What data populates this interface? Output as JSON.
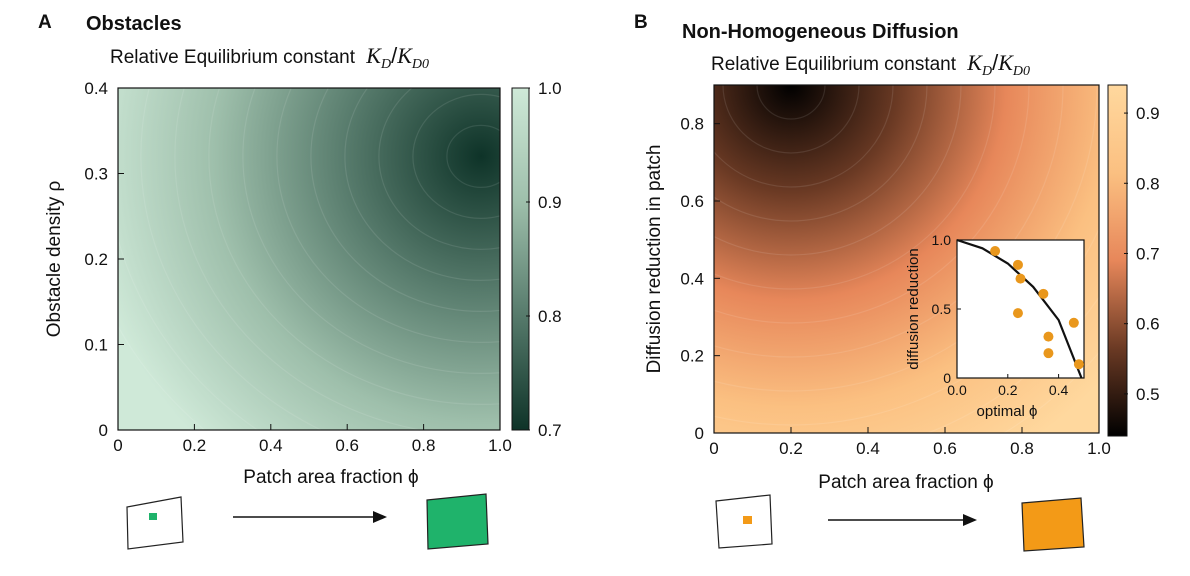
{
  "panels": {
    "a": {
      "letter": "A",
      "title": "Obstacles"
    },
    "b": {
      "letter": "B",
      "title": "Non-Homogeneous Diffusion"
    }
  },
  "subtitle_prefix": "Relative Equilibrium constant",
  "kd_symbol": "K",
  "kd_sub": "D",
  "kd0_sub": "D0",
  "kd_slash": "/",
  "colors": {
    "green_patch": "#1fb36b",
    "orange_patch": "#f39a17",
    "inset_points": "#e9971c"
  },
  "chart_data": [
    {
      "type": "heatmap",
      "xlabel": "Patch area fraction ϕ",
      "ylabel": "Obstacle density ρ",
      "xlim": [
        0,
        1.0
      ],
      "ylim": [
        0,
        0.4
      ],
      "x_ticks": [
        "0",
        "0.2",
        "0.4",
        "0.6",
        "0.8",
        "1.0"
      ],
      "y_ticks": [
        "0",
        "0.1",
        "0.2",
        "0.3",
        "0.4"
      ],
      "colorbar": {
        "range": [
          0.7,
          1.0
        ],
        "ticks": [
          "0.7",
          "0.8",
          "0.9",
          "1.0"
        ]
      },
      "colormap": [
        "#0e3328",
        "#567a6b",
        "#9ebfab",
        "#cfe9d8"
      ],
      "min_location": [
        0.95,
        0.32
      ],
      "min_value": 0.7,
      "grid": false
    },
    {
      "type": "heatmap",
      "xlabel": "Patch area fraction ϕ",
      "ylabel": "Diffusion reduction in patch",
      "xlim": [
        0,
        1.0
      ],
      "ylim": [
        0,
        0.9
      ],
      "x_ticks": [
        "0",
        "0.2",
        "0.4",
        "0.6",
        "0.8",
        "1.0"
      ],
      "y_ticks": [
        "0",
        "0.2",
        "0.4",
        "0.6",
        "0.8"
      ],
      "colorbar": {
        "range": [
          0.44,
          0.94
        ],
        "ticks": [
          "0.5",
          "0.6",
          "0.7",
          "0.8",
          "0.9"
        ]
      },
      "colormap": [
        "#000000",
        "#6b3a24",
        "#e7875a",
        "#fbc081",
        "#ffd89e"
      ],
      "min_location": [
        0.2,
        0.9
      ],
      "min_value": 0.44,
      "grid": false
    },
    {
      "type": "scatter",
      "xlabel": "optimal ϕ",
      "ylabel": "diffusion reduction",
      "xlim": [
        0,
        0.5
      ],
      "ylim": [
        0,
        1.0
      ],
      "x_ticks": [
        "0.0",
        "0.2",
        "0.4"
      ],
      "y_ticks": [
        "0",
        "0.5",
        "1.0"
      ],
      "points": [
        {
          "x": 0.15,
          "y": 0.92
        },
        {
          "x": 0.24,
          "y": 0.82
        },
        {
          "x": 0.25,
          "y": 0.72
        },
        {
          "x": 0.34,
          "y": 0.61
        },
        {
          "x": 0.24,
          "y": 0.47
        },
        {
          "x": 0.46,
          "y": 0.4
        },
        {
          "x": 0.36,
          "y": 0.3
        },
        {
          "x": 0.36,
          "y": 0.18
        },
        {
          "x": 0.48,
          "y": 0.1
        }
      ],
      "curve": [
        [
          0,
          1.0
        ],
        [
          0.1,
          0.94
        ],
        [
          0.2,
          0.83
        ],
        [
          0.3,
          0.66
        ],
        [
          0.4,
          0.42
        ],
        [
          0.49,
          0.0
        ]
      ]
    }
  ]
}
